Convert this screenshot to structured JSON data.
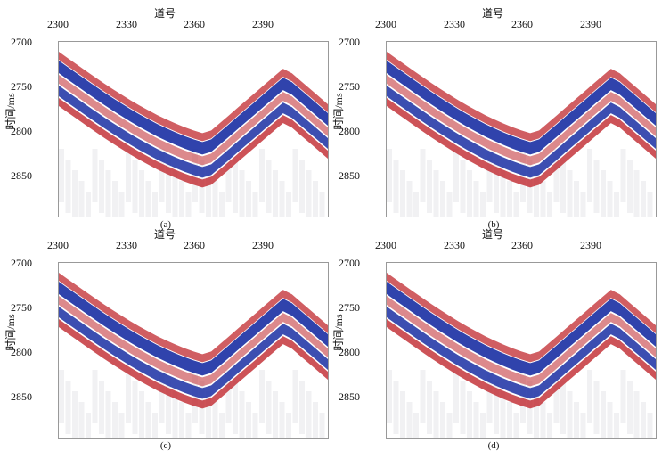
{
  "figure": {
    "panels": [
      {
        "id": "a",
        "caption": "(a)"
      },
      {
        "id": "b",
        "caption": "(b)"
      },
      {
        "id": "c",
        "caption": "(c)"
      },
      {
        "id": "d",
        "caption": "(d)"
      }
    ],
    "x_axis_title": "道号",
    "y_axis_title": "时间/ms",
    "x_ticks": [
      "2300",
      "2330",
      "2360",
      "2390"
    ],
    "y_ticks": [
      "2700",
      "2750",
      "2800",
      "2850"
    ],
    "colors": {
      "positive": "#1a2fa3",
      "negative": "#c0282e",
      "background": "#ffffff"
    }
  }
}
